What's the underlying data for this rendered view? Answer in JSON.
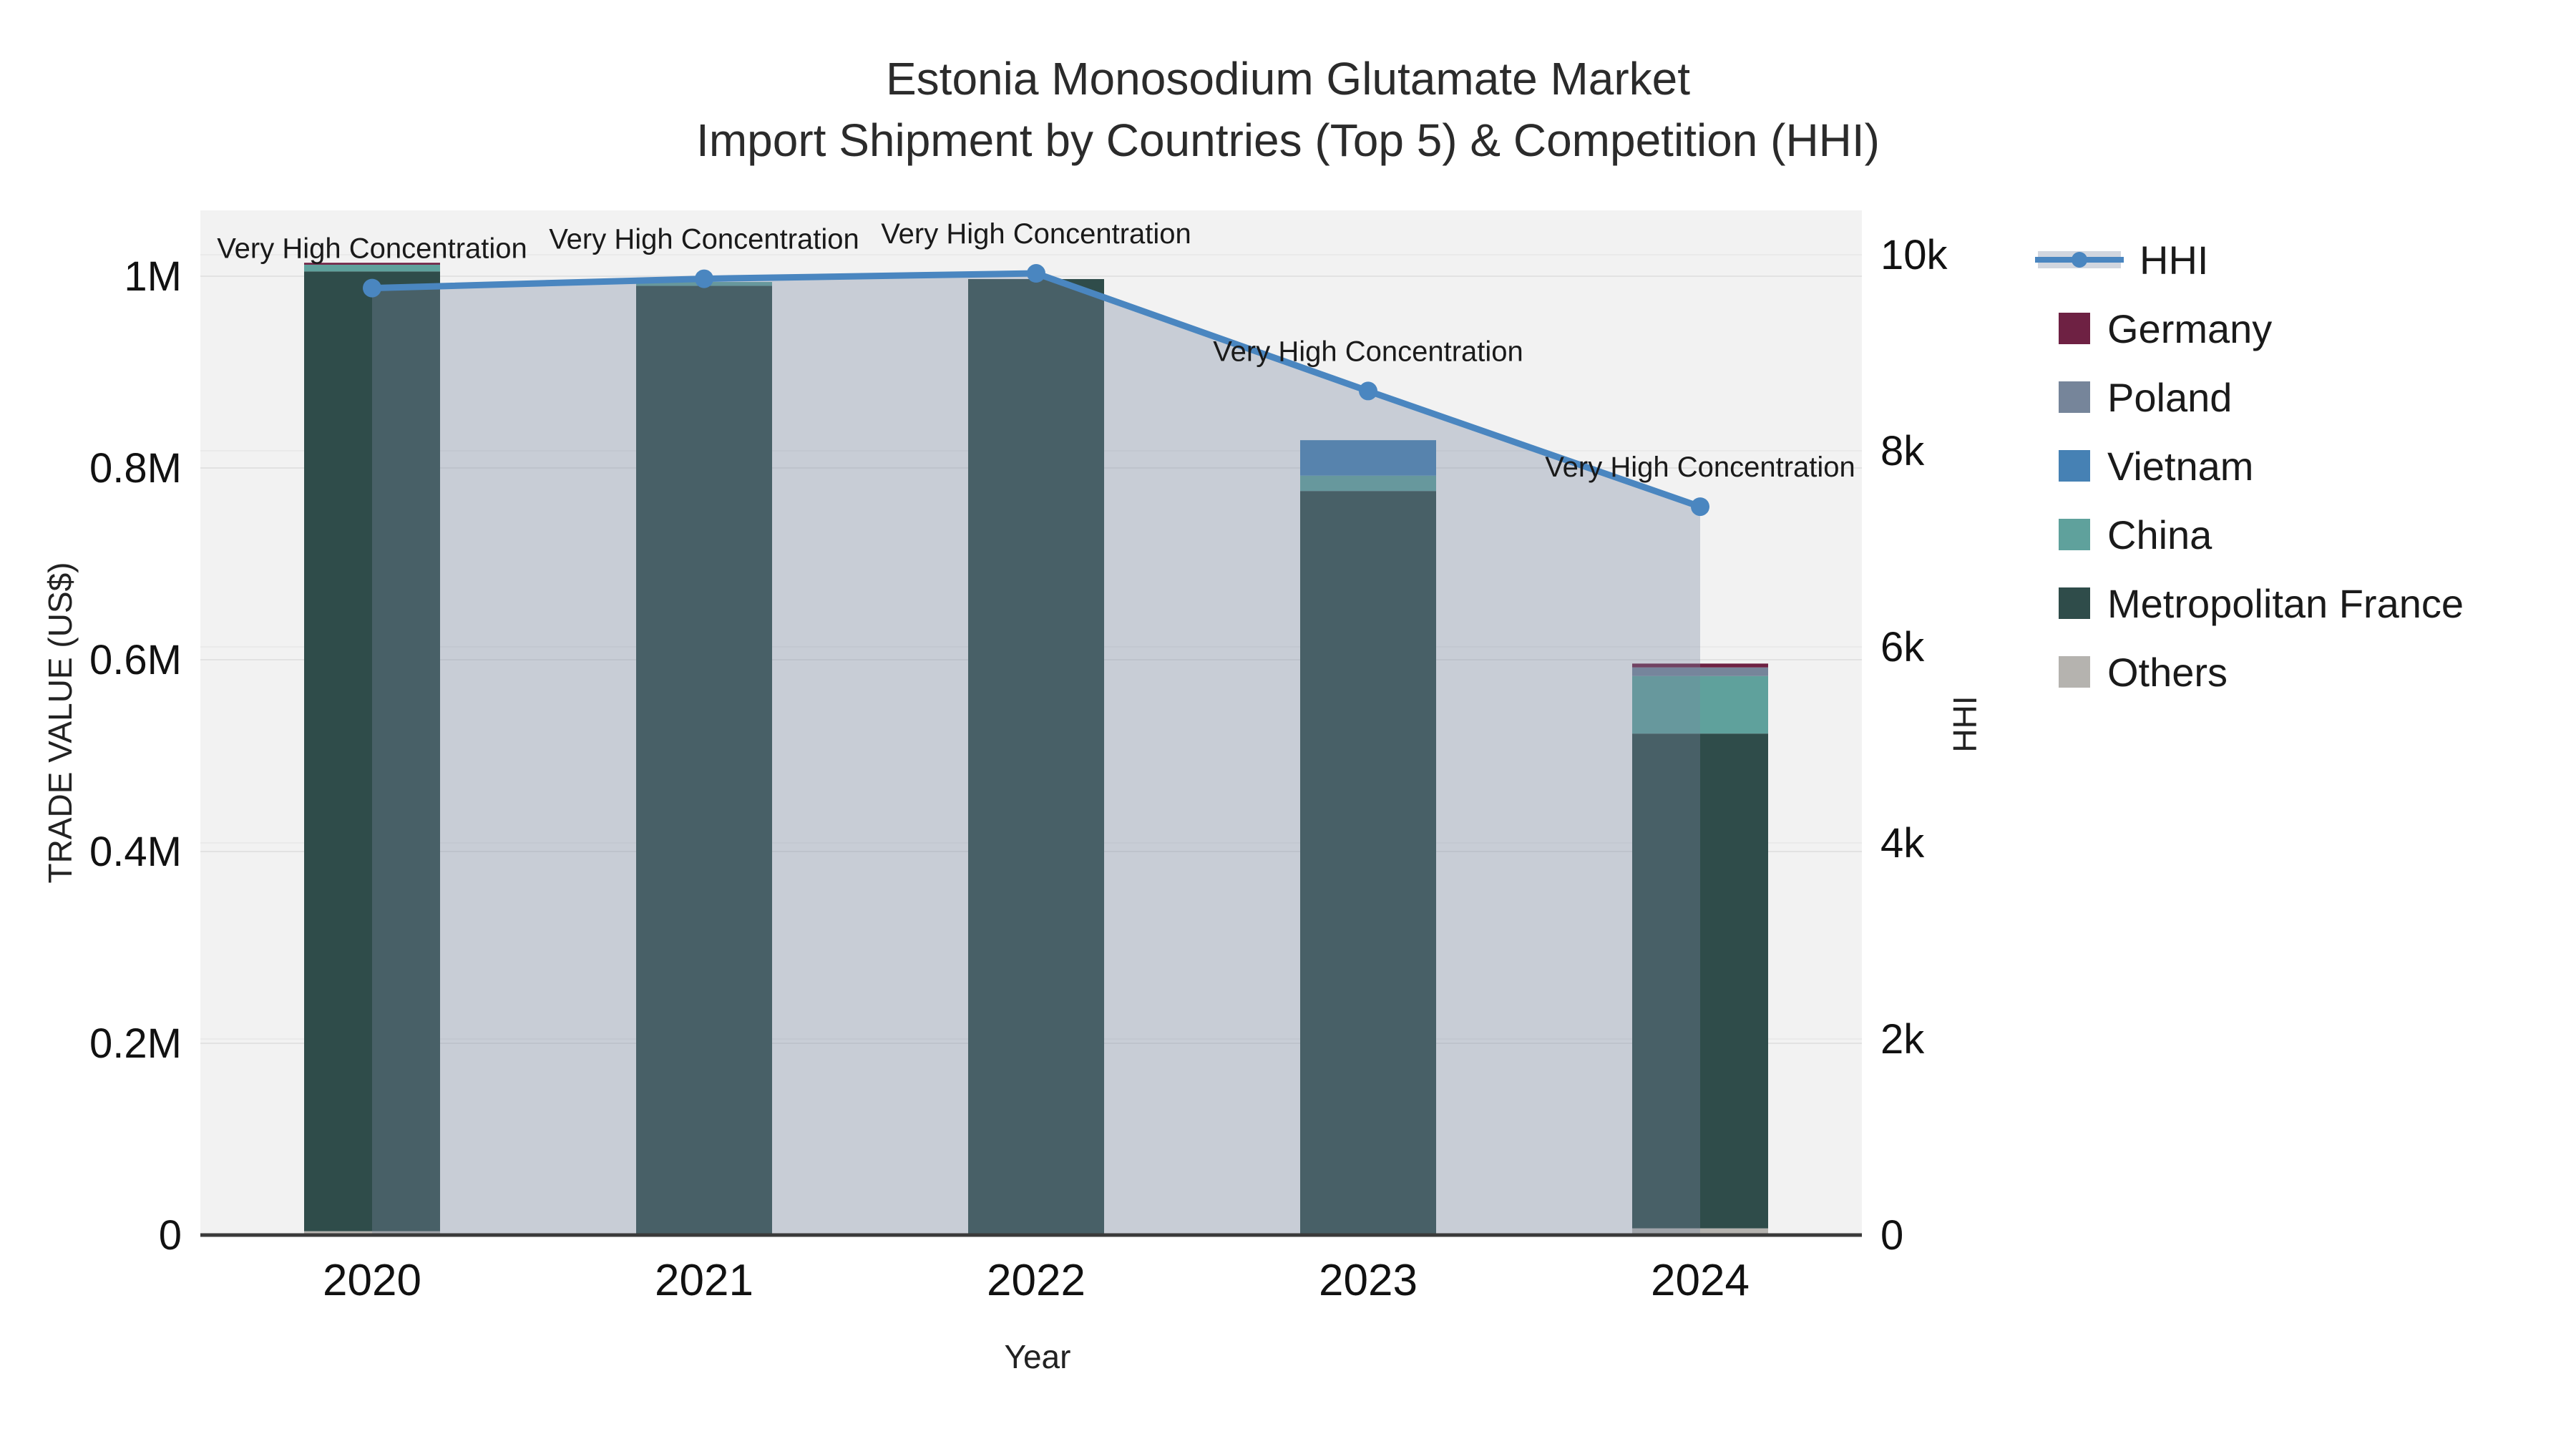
{
  "title": {
    "line1": "Estonia Monosodium Glutamate Market",
    "line2": "Import Shipment by Countries (Top 5) & Competition (HHI)"
  },
  "legend": {
    "items": [
      {
        "label": "HHI",
        "type": "line",
        "color": "#4A86C0",
        "band_color": "rgba(120,135,160,0.34)"
      },
      {
        "label": "Germany",
        "type": "swatch",
        "color": "#6E2143"
      },
      {
        "label": "Poland",
        "type": "swatch",
        "color": "#76859A"
      },
      {
        "label": "Vietnam",
        "type": "swatch",
        "color": "#4681B4"
      },
      {
        "label": "China",
        "type": "swatch",
        "color": "#5FA19C"
      },
      {
        "label": "Metropolitan France",
        "type": "swatch",
        "color": "#2F4C4A"
      },
      {
        "label": "Others",
        "type": "swatch",
        "color": "#B5B3AF"
      }
    ]
  },
  "chart_data": {
    "type": "combo: stacked-bar (trade value) + line-with-area (HHI)",
    "categories": [
      "2020",
      "2021",
      "2022",
      "2023",
      "2024"
    ],
    "x_axis": {
      "title": "Year"
    },
    "left_axis": {
      "title": "TRADE VALUE (US$)",
      "units": "millions USD",
      "range": [
        0,
        1.07
      ],
      "ticks": [
        {
          "v": 0,
          "label": "0"
        },
        {
          "v": 0.2,
          "label": "0.2M"
        },
        {
          "v": 0.4,
          "label": "0.4M"
        },
        {
          "v": 0.6,
          "label": "0.6M"
        },
        {
          "v": 0.8,
          "label": "0.8M"
        },
        {
          "v": 1.0,
          "label": "1M"
        }
      ]
    },
    "right_axis": {
      "title": "HHI",
      "range": [
        0,
        10450
      ],
      "ticks": [
        {
          "v": 0,
          "label": "0"
        },
        {
          "v": 2000,
          "label": "2k"
        },
        {
          "v": 4000,
          "label": "4k"
        },
        {
          "v": 6000,
          "label": "6k"
        },
        {
          "v": 8000,
          "label": "8k"
        },
        {
          "v": 10000,
          "label": "10k"
        }
      ]
    },
    "bar_series": [
      {
        "name": "Others",
        "color": "#B5B3AF",
        "values_millions_usd": [
          0.004,
          0,
          0,
          0,
          0.007
        ]
      },
      {
        "name": "Metropolitan France",
        "color": "#2F4C4A",
        "values_millions_usd": [
          1.001,
          0.99,
          0.997,
          0.776,
          0.516
        ]
      },
      {
        "name": "China",
        "color": "#5FA19C",
        "values_millions_usd": [
          0.007,
          0.004,
          0,
          0.016,
          0.06
        ]
      },
      {
        "name": "Vietnam",
        "color": "#4681B4",
        "values_millions_usd": [
          0,
          0,
          0,
          0.037,
          0
        ]
      },
      {
        "name": "Poland",
        "color": "#76859A",
        "values_millions_usd": [
          0,
          0,
          0,
          0,
          0.009
        ]
      },
      {
        "name": "Germany",
        "color": "#6E2143",
        "values_millions_usd": [
          0.002,
          0,
          0,
          0,
          0.004
        ]
      }
    ],
    "bar_totals_millions_usd": [
      1.014,
      0.994,
      0.997,
      0.829,
      0.596
    ],
    "line_series": {
      "name": "HHI",
      "color": "#4A86C0",
      "marker": "circle",
      "area_fill": "rgba(120,135,160,0.34)",
      "values": [
        9660,
        9755,
        9810,
        8610,
        7430
      ],
      "annotations": [
        "Very High Concentration",
        "Very High Concentration",
        "Very High Concentration",
        "Very High Concentration",
        "Very High Concentration"
      ]
    },
    "layout_hints": {
      "plot_background": "#F2F2F2",
      "grid": "on",
      "legend_position": "right"
    }
  }
}
